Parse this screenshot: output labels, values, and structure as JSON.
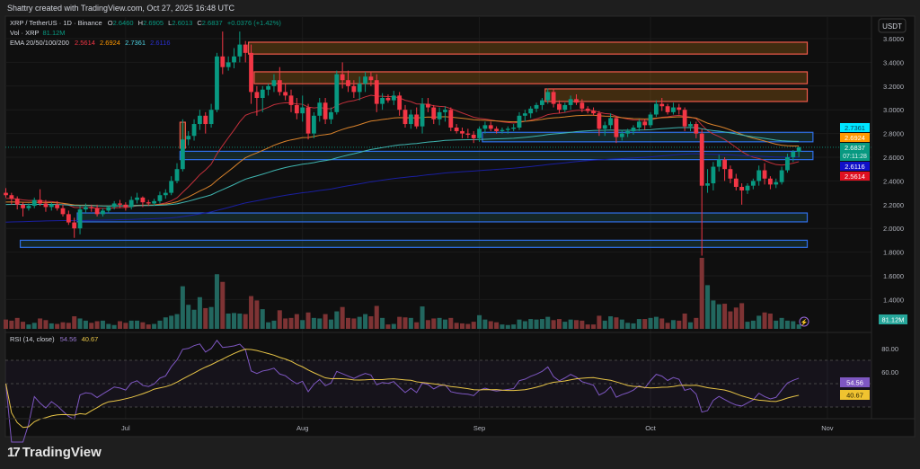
{
  "attribution": "Shattry created with TradingView.com, Oct 27, 2025 16:48 UTC",
  "legend": {
    "symbol": "XRP / TetherUS · 1D · Binance",
    "o_label": "O",
    "o": "2.6460",
    "h_label": "H",
    "h": "2.6905",
    "l_label": "L",
    "l": "2.6013",
    "c_label": "C",
    "c": "2.6837",
    "change": "+0.0376 (+1.42%)",
    "vol_label": "Vol · XRP",
    "vol": "81.12M",
    "ema_label": "EMA 20/50/100/200",
    "ema20": "2.5614",
    "ema50": "2.6924",
    "ema100": "2.7361",
    "ema200": "2.6116",
    "rsi_label": "RSI (14, close)",
    "rsi": "54.56",
    "rsi_ma": "40.67"
  },
  "currency": "USDT",
  "badges": {
    "ema100": "2.7361",
    "ema50": "2.6924",
    "price": "2.6837",
    "countdown": "07:11:28",
    "ema200": "2.6116",
    "ema20": "2.5614",
    "volume": "81.12M",
    "rsi": "54.56",
    "rsi_ma": "40.67"
  },
  "colors": {
    "up": "#089981",
    "down": "#f23645",
    "ema20": "#c2303b",
    "ema50": "#d9822b",
    "ema100": "#3fb5b0",
    "ema200": "#1a1fa0",
    "rsi": "#7e57c2",
    "rsi_ma": "#e8c547",
    "zone_red": "#f05a4a",
    "zone_blue": "#2f6fe8"
  },
  "footer": {
    "brand": "TradingView"
  },
  "chart_data": {
    "type": "candlestick",
    "title": "XRP / TetherUS · 1D · Binance",
    "ylim": [
      1.32,
      3.68
    ],
    "y_ticks": [
      "3.6000",
      "3.4000",
      "3.2000",
      "3.0000",
      "2.8000",
      "2.6000",
      "2.4000",
      "2.2000",
      "2.0000",
      "1.8000",
      "1.6000",
      "1.4000"
    ],
    "x_ticks": [
      {
        "label": "Jul",
        "date": "2025-07-01"
      },
      {
        "label": "Aug",
        "date": "2025-08-01"
      },
      {
        "label": "Sep",
        "date": "2025-09-01"
      },
      {
        "label": "Oct",
        "date": "2025-10-01"
      },
      {
        "label": "Nov",
        "date": "2025-11-01"
      }
    ],
    "rsi_ticks": [
      "80.00",
      "60.00"
    ],
    "rsi_bands": [
      70,
      50,
      30
    ],
    "columns": [
      "date",
      "open",
      "high",
      "low",
      "close",
      "volume_M"
    ],
    "candles": [
      [
        "2025-06-10",
        2.3,
        2.34,
        2.26,
        2.28,
        170
      ],
      [
        "2025-06-11",
        2.28,
        2.3,
        2.2,
        2.25,
        150
      ],
      [
        "2025-06-12",
        2.25,
        2.27,
        2.16,
        2.2,
        200
      ],
      [
        "2025-06-13",
        2.2,
        2.22,
        2.1,
        2.17,
        130
      ],
      [
        "2025-06-14",
        2.17,
        2.21,
        2.15,
        2.19,
        80
      ],
      [
        "2025-06-15",
        2.19,
        2.26,
        2.17,
        2.24,
        110
      ],
      [
        "2025-06-16",
        2.24,
        2.33,
        2.19,
        2.21,
        190
      ],
      [
        "2025-06-17",
        2.21,
        2.24,
        2.14,
        2.18,
        160
      ],
      [
        "2025-06-18",
        2.18,
        2.22,
        2.15,
        2.2,
        100
      ],
      [
        "2025-06-19",
        2.2,
        2.23,
        2.15,
        2.17,
        90
      ],
      [
        "2025-06-20",
        2.17,
        2.2,
        2.1,
        2.12,
        120
      ],
      [
        "2025-06-21",
        2.12,
        2.15,
        2.03,
        2.05,
        110
      ],
      [
        "2025-06-22",
        2.05,
        2.09,
        1.92,
        2.0,
        230
      ],
      [
        "2025-06-23",
        2.0,
        2.19,
        1.95,
        2.16,
        190
      ],
      [
        "2025-06-24",
        2.16,
        2.21,
        2.13,
        2.18,
        150
      ],
      [
        "2025-06-25",
        2.18,
        2.2,
        2.14,
        2.17,
        110
      ],
      [
        "2025-06-26",
        2.17,
        2.2,
        2.1,
        2.12,
        140
      ],
      [
        "2025-06-27",
        2.12,
        2.17,
        2.1,
        2.15,
        150
      ],
      [
        "2025-06-28",
        2.15,
        2.19,
        2.13,
        2.18,
        90
      ],
      [
        "2025-06-29",
        2.18,
        2.23,
        2.16,
        2.21,
        70
      ],
      [
        "2025-06-30",
        2.21,
        2.24,
        2.17,
        2.2,
        140
      ],
      [
        "2025-07-01",
        2.2,
        2.22,
        2.15,
        2.18,
        110
      ],
      [
        "2025-07-02",
        2.18,
        2.27,
        2.16,
        2.24,
        150
      ],
      [
        "2025-07-03",
        2.24,
        2.3,
        2.21,
        2.26,
        150
      ],
      [
        "2025-07-04",
        2.26,
        2.27,
        2.18,
        2.22,
        120
      ],
      [
        "2025-07-05",
        2.22,
        2.24,
        2.19,
        2.21,
        80
      ],
      [
        "2025-07-06",
        2.21,
        2.25,
        2.19,
        2.23,
        90
      ],
      [
        "2025-07-07",
        2.23,
        2.31,
        2.21,
        2.28,
        150
      ],
      [
        "2025-07-08",
        2.28,
        2.33,
        2.25,
        2.3,
        210
      ],
      [
        "2025-07-09",
        2.3,
        2.44,
        2.28,
        2.4,
        240
      ],
      [
        "2025-07-10",
        2.4,
        2.55,
        2.38,
        2.5,
        270
      ],
      [
        "2025-07-11",
        2.5,
        2.92,
        2.48,
        2.75,
        780
      ],
      [
        "2025-07-12",
        2.75,
        2.82,
        2.7,
        2.78,
        440
      ],
      [
        "2025-07-13",
        2.78,
        2.92,
        2.74,
        2.88,
        350
      ],
      [
        "2025-07-14",
        2.88,
        3.0,
        2.83,
        2.95,
        580
      ],
      [
        "2025-07-15",
        2.95,
        2.98,
        2.8,
        2.88,
        380
      ],
      [
        "2025-07-16",
        2.88,
        3.05,
        2.85,
        3.0,
        400
      ],
      [
        "2025-07-17",
        3.0,
        3.48,
        2.98,
        3.45,
        1000
      ],
      [
        "2025-07-18",
        3.45,
        3.66,
        3.3,
        3.36,
        860
      ],
      [
        "2025-07-19",
        3.36,
        3.45,
        3.33,
        3.4,
        280
      ],
      [
        "2025-07-20",
        3.4,
        3.52,
        3.35,
        3.45,
        290
      ],
      [
        "2025-07-21",
        3.45,
        3.66,
        3.4,
        3.55,
        280
      ],
      [
        "2025-07-22",
        3.55,
        3.58,
        3.4,
        3.48,
        270
      ],
      [
        "2025-07-23",
        3.48,
        3.55,
        3.05,
        3.15,
        600
      ],
      [
        "2025-07-24",
        3.15,
        3.2,
        2.95,
        3.1,
        520
      ],
      [
        "2025-07-25",
        3.1,
        3.2,
        2.98,
        3.17,
        360
      ],
      [
        "2025-07-26",
        3.17,
        3.22,
        3.12,
        3.2,
        120
      ],
      [
        "2025-07-27",
        3.2,
        3.3,
        3.15,
        3.25,
        150
      ],
      [
        "2025-07-28",
        3.25,
        3.36,
        3.12,
        3.15,
        340
      ],
      [
        "2025-07-29",
        3.15,
        3.22,
        3.08,
        3.12,
        190
      ],
      [
        "2025-07-30",
        3.12,
        3.17,
        2.98,
        3.04,
        200
      ],
      [
        "2025-07-31",
        3.04,
        3.1,
        2.92,
        2.97,
        270
      ],
      [
        "2025-08-01",
        2.97,
        3.12,
        2.9,
        3.02,
        160
      ],
      [
        "2025-08-02",
        3.02,
        3.05,
        2.75,
        2.8,
        300
      ],
      [
        "2025-08-03",
        2.8,
        2.98,
        2.76,
        2.95,
        200
      ],
      [
        "2025-08-04",
        2.95,
        3.1,
        2.9,
        3.06,
        190
      ],
      [
        "2025-08-05",
        3.06,
        3.1,
        2.88,
        2.92,
        270
      ],
      [
        "2025-08-06",
        2.92,
        3.02,
        2.88,
        2.98,
        170
      ],
      [
        "2025-08-07",
        2.98,
        3.33,
        2.96,
        3.3,
        320
      ],
      [
        "2025-08-08",
        3.3,
        3.4,
        3.18,
        3.25,
        400
      ],
      [
        "2025-08-09",
        3.25,
        3.33,
        3.15,
        3.2,
        200
      ],
      [
        "2025-08-10",
        3.2,
        3.25,
        3.1,
        3.15,
        190
      ],
      [
        "2025-08-11",
        3.15,
        3.28,
        3.08,
        3.22,
        220
      ],
      [
        "2025-08-12",
        3.22,
        3.32,
        3.15,
        3.28,
        270
      ],
      [
        "2025-08-13",
        3.28,
        3.32,
        3.2,
        3.25,
        230
      ],
      [
        "2025-08-14",
        3.25,
        3.3,
        2.98,
        3.05,
        420
      ],
      [
        "2025-08-15",
        3.05,
        3.14,
        3.0,
        3.1,
        200
      ],
      [
        "2025-08-16",
        3.1,
        3.13,
        3.06,
        3.08,
        80
      ],
      [
        "2025-08-17",
        3.08,
        3.16,
        3.04,
        3.12,
        90
      ],
      [
        "2025-08-18",
        3.12,
        3.15,
        2.95,
        3.0,
        220
      ],
      [
        "2025-08-19",
        3.0,
        3.04,
        2.85,
        2.88,
        210
      ],
      [
        "2025-08-20",
        2.88,
        3.0,
        2.84,
        2.96,
        200
      ],
      [
        "2025-08-21",
        2.96,
        3.02,
        2.84,
        2.86,
        120
      ],
      [
        "2025-08-22",
        2.86,
        3.1,
        2.8,
        3.05,
        410
      ],
      [
        "2025-08-23",
        3.05,
        3.1,
        2.98,
        3.02,
        160
      ],
      [
        "2025-08-24",
        3.02,
        3.04,
        2.88,
        2.92,
        190
      ],
      [
        "2025-08-25",
        2.92,
        3.02,
        2.87,
        2.98,
        200
      ],
      [
        "2025-08-26",
        2.98,
        3.03,
        2.9,
        3.0,
        170
      ],
      [
        "2025-08-27",
        3.0,
        3.02,
        2.82,
        2.85,
        200
      ],
      [
        "2025-08-28",
        2.85,
        2.88,
        2.8,
        2.82,
        110
      ],
      [
        "2025-08-29",
        2.82,
        2.85,
        2.76,
        2.8,
        100
      ],
      [
        "2025-08-30",
        2.8,
        2.84,
        2.76,
        2.79,
        90
      ],
      [
        "2025-08-31",
        2.79,
        2.82,
        2.72,
        2.76,
        130
      ],
      [
        "2025-09-01",
        2.76,
        2.86,
        2.73,
        2.84,
        250
      ],
      [
        "2025-09-02",
        2.84,
        2.9,
        2.8,
        2.87,
        170
      ],
      [
        "2025-09-03",
        2.87,
        2.9,
        2.82,
        2.84,
        140
      ],
      [
        "2025-09-04",
        2.84,
        2.86,
        2.8,
        2.82,
        120
      ],
      [
        "2025-09-05",
        2.82,
        2.85,
        2.8,
        2.83,
        80
      ],
      [
        "2025-09-06",
        2.83,
        2.86,
        2.8,
        2.84,
        70
      ],
      [
        "2025-09-07",
        2.84,
        2.88,
        2.82,
        2.85,
        80
      ],
      [
        "2025-09-08",
        2.85,
        2.98,
        2.83,
        2.95,
        170
      ],
      [
        "2025-09-09",
        2.95,
        3.0,
        2.9,
        2.97,
        140
      ],
      [
        "2025-09-10",
        2.97,
        3.03,
        2.93,
        3.01,
        180
      ],
      [
        "2025-09-11",
        3.01,
        3.06,
        2.98,
        3.04,
        170
      ],
      [
        "2025-09-12",
        3.04,
        3.1,
        3.0,
        3.08,
        180
      ],
      [
        "2025-09-13",
        3.08,
        3.18,
        3.05,
        3.15,
        220
      ],
      [
        "2025-09-14",
        3.15,
        3.18,
        3.02,
        3.05,
        160
      ],
      [
        "2025-09-15",
        3.05,
        3.08,
        2.97,
        3.0,
        180
      ],
      [
        "2025-09-16",
        3.0,
        3.06,
        2.98,
        3.04,
        130
      ],
      [
        "2025-09-17",
        3.04,
        3.12,
        3.0,
        3.09,
        170
      ],
      [
        "2025-09-18",
        3.09,
        3.13,
        3.04,
        3.06,
        160
      ],
      [
        "2025-09-19",
        3.06,
        3.09,
        2.98,
        3.01,
        150
      ],
      [
        "2025-09-20",
        3.01,
        3.03,
        2.97,
        2.99,
        80
      ],
      [
        "2025-09-21",
        2.99,
        3.02,
        2.95,
        2.97,
        80
      ],
      [
        "2025-09-22",
        2.97,
        2.99,
        2.78,
        2.84,
        240
      ],
      [
        "2025-09-23",
        2.84,
        2.9,
        2.78,
        2.87,
        150
      ],
      [
        "2025-09-24",
        2.87,
        2.97,
        2.84,
        2.93,
        230
      ],
      [
        "2025-09-25",
        2.93,
        2.95,
        2.72,
        2.77,
        210
      ],
      [
        "2025-09-26",
        2.77,
        2.83,
        2.74,
        2.8,
        170
      ],
      [
        "2025-09-27",
        2.8,
        2.84,
        2.77,
        2.82,
        110
      ],
      [
        "2025-09-28",
        2.82,
        2.87,
        2.79,
        2.85,
        100
      ],
      [
        "2025-09-29",
        2.85,
        2.92,
        2.82,
        2.9,
        180
      ],
      [
        "2025-09-30",
        2.9,
        2.92,
        2.83,
        2.87,
        180
      ],
      [
        "2025-10-01",
        2.87,
        2.98,
        2.85,
        2.96,
        200
      ],
      [
        "2025-10-02",
        2.96,
        3.08,
        2.94,
        3.05,
        220
      ],
      [
        "2025-10-03",
        3.05,
        3.1,
        2.99,
        3.03,
        190
      ],
      [
        "2025-10-04",
        3.03,
        3.05,
        2.96,
        2.98,
        110
      ],
      [
        "2025-10-05",
        2.98,
        3.06,
        2.96,
        3.02,
        160
      ],
      [
        "2025-10-06",
        3.02,
        3.05,
        2.96,
        3.0,
        150
      ],
      [
        "2025-10-07",
        3.0,
        3.02,
        2.82,
        2.86,
        280
      ],
      [
        "2025-10-08",
        2.86,
        2.9,
        2.82,
        2.88,
        120
      ],
      [
        "2025-10-09",
        2.88,
        2.9,
        2.76,
        2.8,
        200
      ],
      [
        "2025-10-10",
        2.8,
        2.84,
        1.77,
        2.36,
        1300
      ],
      [
        "2025-10-11",
        2.36,
        2.5,
        2.3,
        2.38,
        800
      ],
      [
        "2025-10-12",
        2.38,
        2.56,
        2.32,
        2.52,
        520
      ],
      [
        "2025-10-13",
        2.52,
        2.62,
        2.48,
        2.58,
        450
      ],
      [
        "2025-10-14",
        2.58,
        2.6,
        2.4,
        2.5,
        460
      ],
      [
        "2025-10-15",
        2.5,
        2.53,
        2.38,
        2.42,
        320
      ],
      [
        "2025-10-16",
        2.42,
        2.46,
        2.32,
        2.35,
        390
      ],
      [
        "2025-10-17",
        2.35,
        2.38,
        2.2,
        2.32,
        470
      ],
      [
        "2025-10-18",
        2.32,
        2.38,
        2.29,
        2.36,
        130
      ],
      [
        "2025-10-19",
        2.36,
        2.42,
        2.33,
        2.4,
        150
      ],
      [
        "2025-10-20",
        2.4,
        2.53,
        2.36,
        2.49,
        240
      ],
      [
        "2025-10-21",
        2.49,
        2.55,
        2.37,
        2.42,
        300
      ],
      [
        "2025-10-22",
        2.42,
        2.44,
        2.33,
        2.37,
        280
      ],
      [
        "2025-10-23",
        2.37,
        2.42,
        2.34,
        2.39,
        150
      ],
      [
        "2025-10-24",
        2.39,
        2.52,
        2.37,
        2.49,
        200
      ],
      [
        "2025-10-25",
        2.49,
        2.63,
        2.47,
        2.6,
        150
      ],
      [
        "2025-10-26",
        2.6,
        2.66,
        2.56,
        2.646,
        140
      ],
      [
        "2025-10-27",
        2.646,
        2.6905,
        2.6013,
        2.6837,
        81.12
      ]
    ],
    "zones": [
      {
        "kind": "supply",
        "from": "2025-07-23",
        "to": "2025-10-28",
        "top": 3.57,
        "bottom": 3.47
      },
      {
        "kind": "supply",
        "from": "2025-07-24",
        "to": "2025-10-28",
        "top": 3.32,
        "bottom": 3.22
      },
      {
        "kind": "supply",
        "from": "2025-09-13",
        "to": "2025-10-28",
        "top": 3.176,
        "bottom": 3.07
      },
      {
        "kind": "supply",
        "from": "2025-07-11",
        "to": "2025-07-11",
        "top": 2.895,
        "bottom": 2.676
      },
      {
        "kind": "demand",
        "from": "2025-09-02",
        "to": "2025-10-29",
        "top": 2.81,
        "bottom": 2.73
      },
      {
        "kind": "demand",
        "from": "2025-07-11",
        "to": "2025-10-29",
        "top": 2.65,
        "bottom": 2.58
      },
      {
        "kind": "demand",
        "from": "2025-06-23",
        "to": "2025-10-28",
        "top": 2.13,
        "bottom": 2.055
      },
      {
        "kind": "demand",
        "from": "2025-06-13",
        "to": "2025-10-28",
        "top": 1.9,
        "bottom": 1.84
      }
    ],
    "last_price": 2.6837
  }
}
